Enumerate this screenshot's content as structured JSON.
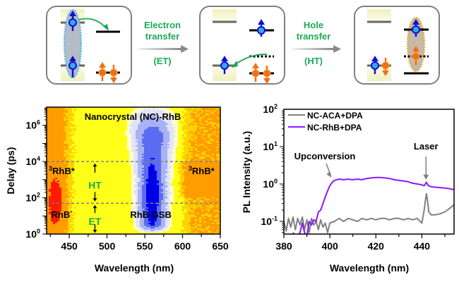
{
  "scheme": {
    "panels": [
      {
        "name": "initial-state"
      },
      {
        "name": "after-electron-transfer"
      },
      {
        "name": "after-hole-transfer"
      }
    ],
    "arrows": [
      {
        "line1": "Electron",
        "line2": "transfer",
        "abbr": "(ET)"
      },
      {
        "line1": "Hole",
        "line2": "transfer",
        "abbr": "(HT)"
      }
    ],
    "colors": {
      "label_green": "#1aaa55",
      "electron_blue": "#1010d0",
      "electron_core": "#33aaee",
      "hole_orange": "#f07010",
      "band_yellow": "#f6f6c8",
      "exciton_grey": "#b4bcc6",
      "ct_exciton_tan": "#c8b8a8"
    }
  },
  "chart_data": [
    {
      "type": "heatmap",
      "title": "Nanocrystal (NC)-RhB",
      "xlabel": "Wavelength (nm)",
      "ylabel": "Delay (ps)",
      "xlim": [
        420,
        650
      ],
      "ylim_log10": [
        0,
        7
      ],
      "yscale": "log",
      "xticks": [
        450,
        500,
        550,
        600,
        650
      ],
      "yticks": [
        {
          "exp": "0"
        },
        {
          "exp": "2"
        },
        {
          "exp": "4"
        },
        {
          "exp": "6"
        }
      ],
      "ytick_base": "10",
      "guide_lines_ps": [
        50,
        10000
      ],
      "regions": [
        {
          "label": "3RhB*",
          "sup": "3",
          "text": "RhB*",
          "x_nm": 440,
          "delay_ps": 2000
        },
        {
          "label": "3RhB*",
          "sup": "3",
          "text": "RhB*",
          "x_nm": 625,
          "delay_ps": 2000
        },
        {
          "label": "RhB-",
          "text": "RhB",
          "sup": "-",
          "x_nm": 440,
          "delay_ps": 8
        },
        {
          "label": "RhB GSB",
          "text": "RhB GSB",
          "x_nm": 558,
          "delay_ps": 8
        }
      ],
      "process_labels": [
        {
          "text": "HT",
          "x_nm": 484,
          "delay_ps": 500
        },
        {
          "text": "ET",
          "x_nm": 484,
          "delay_ps": 5
        }
      ],
      "features": {
        "gsb_center_nm": 560,
        "rhb_anion_center_nm": 432,
        "rhb_anion_delay_range_ps": [
          3,
          1000
        ]
      },
      "colormap": [
        "#0000e6",
        "#5a6cf0",
        "#a8b2f4",
        "#e0e4fa",
        "#fffbd0",
        "#ffff1a",
        "#ffd200",
        "#ff9c00",
        "#ff1a00"
      ]
    },
    {
      "type": "line",
      "xlabel": "Wavelength (nm)",
      "ylabel": "PL Intensity (a.u.)",
      "xlim": [
        380,
        454
      ],
      "yscale": "log",
      "ylim_log10": [
        -1.34,
        2
      ],
      "xticks": [
        380,
        400,
        420,
        440
      ],
      "yticks": [
        {
          "exp": "-1"
        },
        {
          "exp": "0"
        },
        {
          "exp": "1"
        },
        {
          "exp": "2"
        }
      ],
      "ytick_base": "10",
      "legend_position": "top-left",
      "series": [
        {
          "name": "NC-ACA+DPA",
          "color": "#808080",
          "x": [
            380,
            381,
            382,
            383,
            384,
            385,
            386,
            387,
            388,
            389,
            390,
            391,
            392,
            393,
            394,
            395,
            396,
            397,
            398,
            399,
            400,
            402,
            404,
            406,
            408,
            410,
            412,
            414,
            416,
            418,
            420,
            422,
            424,
            426,
            428,
            430,
            432,
            434,
            436,
            438,
            440,
            441,
            441.5,
            442,
            442.5,
            443,
            444,
            446,
            448,
            450,
            452,
            454
          ],
          "y": [
            0.1,
            0.055,
            0.12,
            0.07,
            0.13,
            0.06,
            0.12,
            0.08,
            0.13,
            0.06,
            0.11,
            0.05,
            0.12,
            0.08,
            0.1,
            0.06,
            0.11,
            0.07,
            0.09,
            0.05,
            0.09,
            0.1,
            0.12,
            0.1,
            0.12,
            0.11,
            0.1,
            0.12,
            0.11,
            0.12,
            0.11,
            0.12,
            0.12,
            0.11,
            0.12,
            0.12,
            0.11,
            0.12,
            0.11,
            0.12,
            0.09,
            0.2,
            0.35,
            0.55,
            0.35,
            0.18,
            0.15,
            0.15,
            0.16,
            0.18,
            0.22,
            0.28
          ]
        },
        {
          "name": "NC-RhB+DPA",
          "color": "#8a1aff",
          "x": [
            384,
            385,
            386,
            387,
            388,
            389,
            390,
            391,
            392,
            393,
            394,
            395,
            396,
            397,
            398,
            399,
            400,
            401,
            402,
            403,
            404,
            406,
            408,
            410,
            412,
            414,
            416,
            418,
            420,
            422,
            424,
            426,
            428,
            430,
            432,
            434,
            436,
            438,
            440,
            441,
            441.5,
            442,
            442.5,
            443,
            444,
            446,
            448,
            450,
            452,
            454
          ],
          "y": [
            0.05,
            0.04,
            0.04,
            0.05,
            0.09,
            0.05,
            0.04,
            0.1,
            0.08,
            0.11,
            0.1,
            0.18,
            0.2,
            0.3,
            0.45,
            0.65,
            0.9,
            1.1,
            1.25,
            1.3,
            1.35,
            1.3,
            1.35,
            1.3,
            1.35,
            1.3,
            1.4,
            1.45,
            1.5,
            1.5,
            1.45,
            1.4,
            1.3,
            1.25,
            1.2,
            1.15,
            1.05,
            1.0,
            0.95,
            0.9,
            1.0,
            1.12,
            0.95,
            0.9,
            0.85,
            0.82,
            0.8,
            0.78,
            0.75,
            0.7
          ]
        }
      ],
      "annotations": [
        {
          "text": "Upconversion",
          "at_x": 401,
          "at_y": 1.3
        },
        {
          "text": "Laser",
          "at_x": 441.8,
          "at_y": 1.15
        }
      ]
    }
  ]
}
